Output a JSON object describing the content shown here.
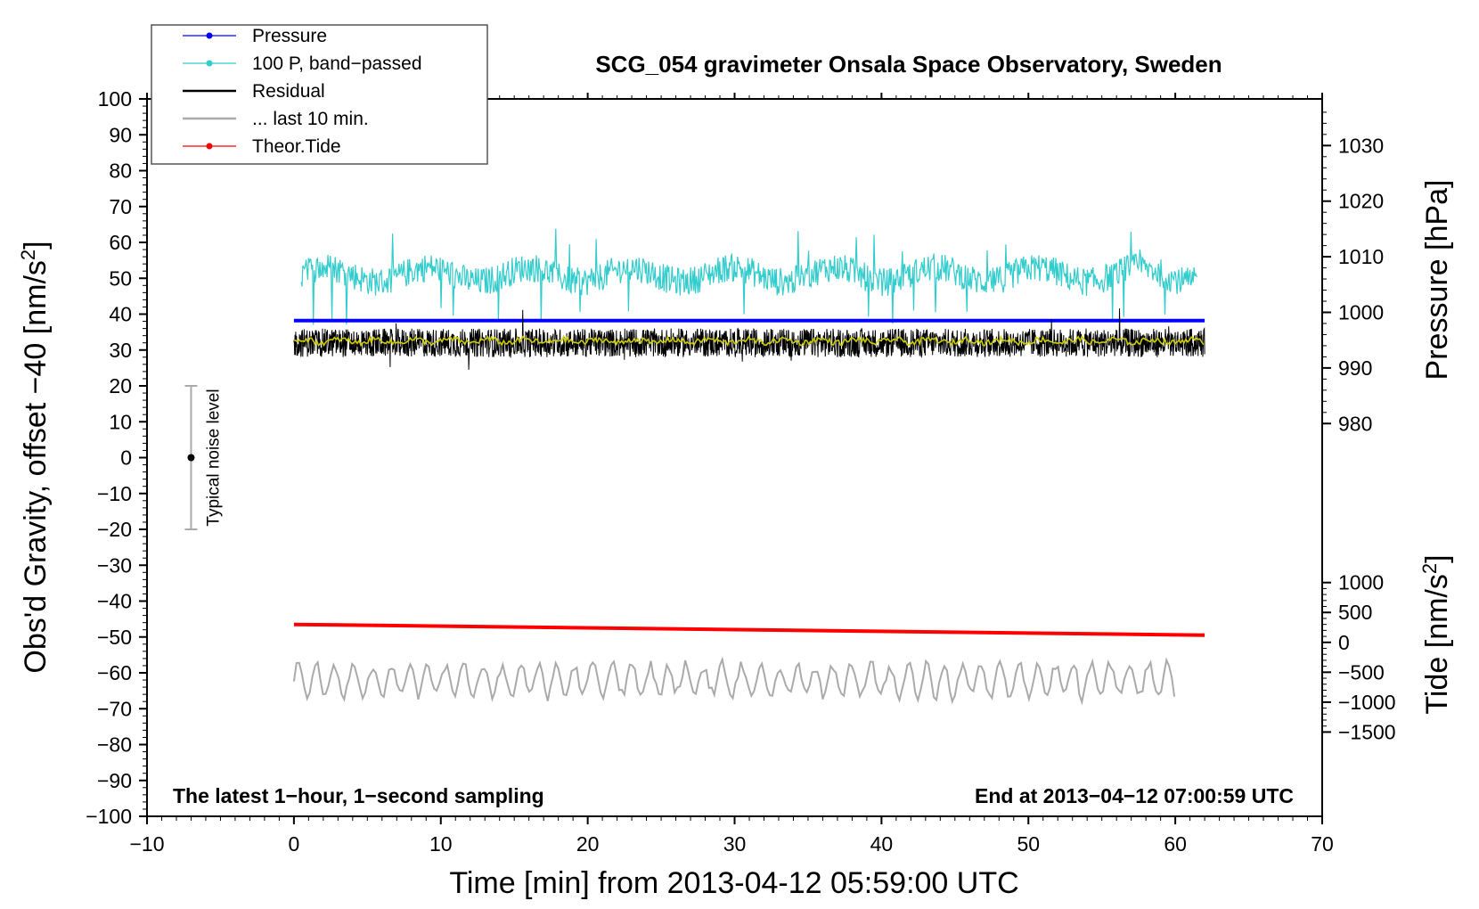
{
  "chart_data": {
    "type": "line",
    "title": "SCG_054 gravimeter Onsala Space Observatory, Sweden",
    "xlabel_prefix": "Time [min] from ",
    "start_time": "2013-04-12 05:59:00 UTC",
    "ylabel_left_main": "Obs'd Gravity, offset −40 [nm/s",
    "ylabel_left_sup": "2",
    "ylabel_left_end": "]",
    "ylabel_right_top": "Pressure [hPa]",
    "ylabel_right_bottom_main": "Tide [nm/s",
    "ylabel_right_bottom_sup": "2",
    "ylabel_right_bottom_end": "]",
    "xlim": [
      -10,
      70
    ],
    "ylim": [
      -100,
      100
    ],
    "x_ticks": [
      -10,
      0,
      10,
      20,
      30,
      40,
      50,
      60,
      70
    ],
    "x_tick_labels": [
      "−10",
      "0",
      "10",
      "20",
      "30",
      "40",
      "50",
      "60",
      "70"
    ],
    "y_ticks": [
      100,
      90,
      80,
      70,
      60,
      50,
      40,
      30,
      20,
      10,
      0,
      -10,
      -20,
      -30,
      -40,
      -50,
      -60,
      -70,
      -80,
      -90,
      -100
    ],
    "y_tick_labels": [
      "100",
      "90",
      "80",
      "70",
      "60",
      "50",
      "40",
      "30",
      "20",
      "10",
      "0",
      "−10",
      "−20",
      "−30",
      "−40",
      "−50",
      "−60",
      "−70",
      "−80",
      "−90",
      "−100"
    ],
    "pressure_axis": {
      "label": "Pressure [hPa]",
      "ticks": [
        1030,
        1020,
        1010,
        1000,
        990,
        980
      ],
      "tick_labels": [
        "1030",
        "1020",
        "1010",
        "1000",
        "990",
        "980"
      ],
      "gravity_at_1000": 40.5,
      "gravity_per_hpa": 1.55
    },
    "tide_axis": {
      "ticks": [
        1000,
        500,
        0,
        -500,
        -1000,
        -1500
      ],
      "tick_labels": [
        "1000",
        "500",
        "0",
        "−500",
        "−1000",
        "−1500"
      ],
      "gravity_at_0": -51.5,
      "gravity_per_unit": 0.01667
    },
    "legend": [
      {
        "name": "Pressure",
        "color": "#0000ff",
        "marker": true
      },
      {
        "name": "100 P, band−passed",
        "color": "#33cccc",
        "marker": true
      },
      {
        "name": "Residual",
        "color": "#000000",
        "marker": false
      },
      {
        "name": "... last 10 min.",
        "color": "#aaaaaa",
        "marker": false
      },
      {
        "name": "Theor.Tide",
        "color": "#ff0000",
        "marker": true
      }
    ],
    "series": [
      {
        "name": "Pressure",
        "color": "#0000ff",
        "level_hpa": 998.5,
        "x_range": [
          0,
          62
        ]
      },
      {
        "name": "100 P, band−passed",
        "color": "#33cccc",
        "baseline": 51,
        "amplitude": 4,
        "spikes": [
          62,
          64,
          58,
          36
        ],
        "x_range": [
          0.5,
          61.5
        ]
      },
      {
        "name": "Residual",
        "color": "#000000",
        "baseline": 32,
        "amplitude": 4,
        "x_range": [
          0,
          62
        ]
      },
      {
        "name": "Residual smoothed",
        "color": "#cccc00",
        "baseline": 32.5,
        "x_range": [
          0,
          62
        ]
      },
      {
        "name": "... last 10 min.",
        "color": "#aaaaaa",
        "baseline": -62,
        "amplitude": 5,
        "x_range": [
          0,
          60
        ]
      },
      {
        "name": "Theor.Tide",
        "color": "#ff0000",
        "x": [
          0,
          62
        ],
        "tide": [
          300,
          120
        ]
      }
    ],
    "noise_bar": {
      "label": "Typical noise level",
      "x": -7,
      "center": 0,
      "range": [
        -20,
        20
      ]
    },
    "annotation_left": "The latest 1−hour, 1−second sampling",
    "annotation_right": "End at 2013−04−12 07:00:59 UTC"
  }
}
